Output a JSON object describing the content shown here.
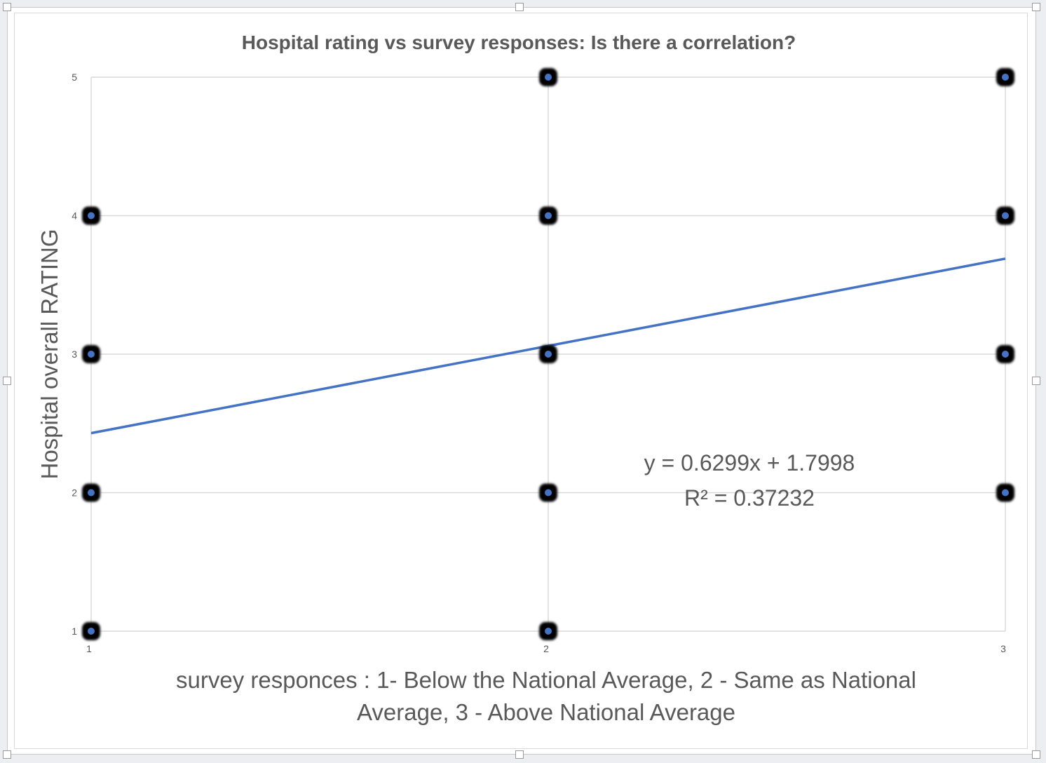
{
  "chart_data": {
    "type": "scatter",
    "title": "Hospital rating vs survey responses: Is there a correlation?",
    "xlabel_lines": [
      "survey responces : 1- Below the National Average, 2 - Same as National",
      "Average, 3 - Above National Average"
    ],
    "ylabel": "Hospital overall  RATING",
    "xlim": [
      1,
      3
    ],
    "ylim": [
      1,
      5
    ],
    "x_ticks": [
      "1",
      "2",
      "3"
    ],
    "y_ticks": [
      "1",
      "2",
      "3",
      "4",
      "5"
    ],
    "grid": true,
    "points": [
      {
        "x": 1,
        "y": 1
      },
      {
        "x": 1,
        "y": 2
      },
      {
        "x": 1,
        "y": 3
      },
      {
        "x": 1,
        "y": 4
      },
      {
        "x": 2,
        "y": 1
      },
      {
        "x": 2,
        "y": 2
      },
      {
        "x": 2,
        "y": 3
      },
      {
        "x": 2,
        "y": 4
      },
      {
        "x": 2,
        "y": 5
      },
      {
        "x": 3,
        "y": 2
      },
      {
        "x": 3,
        "y": 3
      },
      {
        "x": 3,
        "y": 4
      },
      {
        "x": 3,
        "y": 5
      }
    ],
    "trendline": {
      "slope": 0.6299,
      "intercept": 1.7998,
      "equation": "y = 0.6299x + 1.7998",
      "r_squared": "R² = 0.37232"
    },
    "colors": {
      "marker_fill": "#4472c4",
      "marker_outline": "#000000",
      "trendline": "#4472c4",
      "grid": "#d9d9d9",
      "text": "#595959"
    }
  }
}
